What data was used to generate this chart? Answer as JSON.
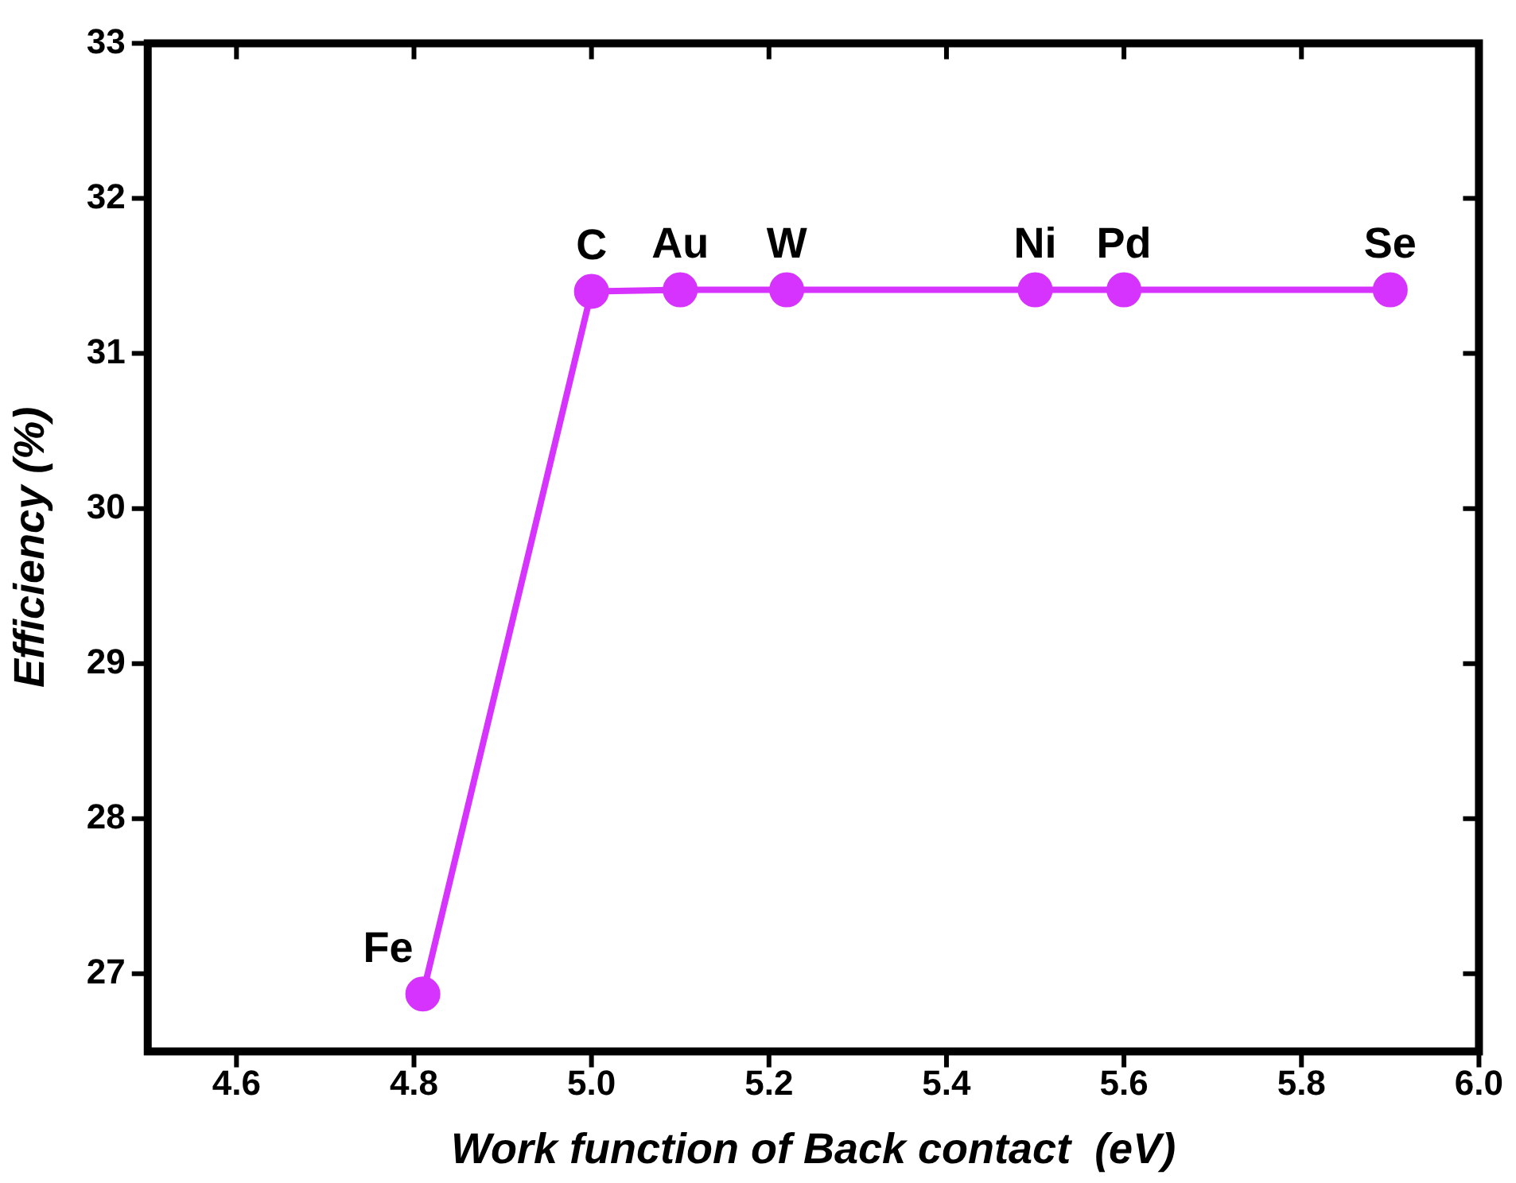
{
  "chart_data": {
    "type": "line",
    "xlabel": "Work function of Back contact  (eV)",
    "ylabel": "Efficiency (%)",
    "x": [
      4.81,
      5.0,
      5.1,
      5.22,
      5.5,
      5.6,
      5.9
    ],
    "series": [
      {
        "color": "#d633ff",
        "values": [
          26.87,
          31.4,
          31.41,
          31.41,
          31.41,
          31.41,
          31.41
        ]
      }
    ],
    "xlim": [
      4.5,
      6.0
    ],
    "xticks": [
      4.6,
      4.8,
      {
        "value": 5,
        "label": "5.0"
      },
      5.2,
      5.4,
      5.6,
      5.8,
      {
        "value": 6,
        "label": "6.0"
      }
    ],
    "ylim": [
      26.5,
      33
    ],
    "yticks": [
      27,
      28,
      29,
      30,
      31,
      32,
      33
    ],
    "marker": "circle",
    "line_style": "solid",
    "grid": false,
    "legend": false,
    "annotations": [
      {
        "text": "Fe",
        "x": 4.81,
        "y": 26.87
      },
      {
        "text": "C",
        "x": 5.0,
        "y": 31.4
      },
      {
        "text": "Au",
        "x": 5.1,
        "y": 31.41
      },
      {
        "text": "W",
        "x": 5.22,
        "y": 31.41
      },
      {
        "text": "Ni",
        "x": 5.5,
        "y": 31.41
      },
      {
        "text": "Pd",
        "x": 5.6,
        "y": 31.41
      },
      {
        "text": "Se",
        "x": 5.9,
        "y": 31.41
      }
    ]
  }
}
